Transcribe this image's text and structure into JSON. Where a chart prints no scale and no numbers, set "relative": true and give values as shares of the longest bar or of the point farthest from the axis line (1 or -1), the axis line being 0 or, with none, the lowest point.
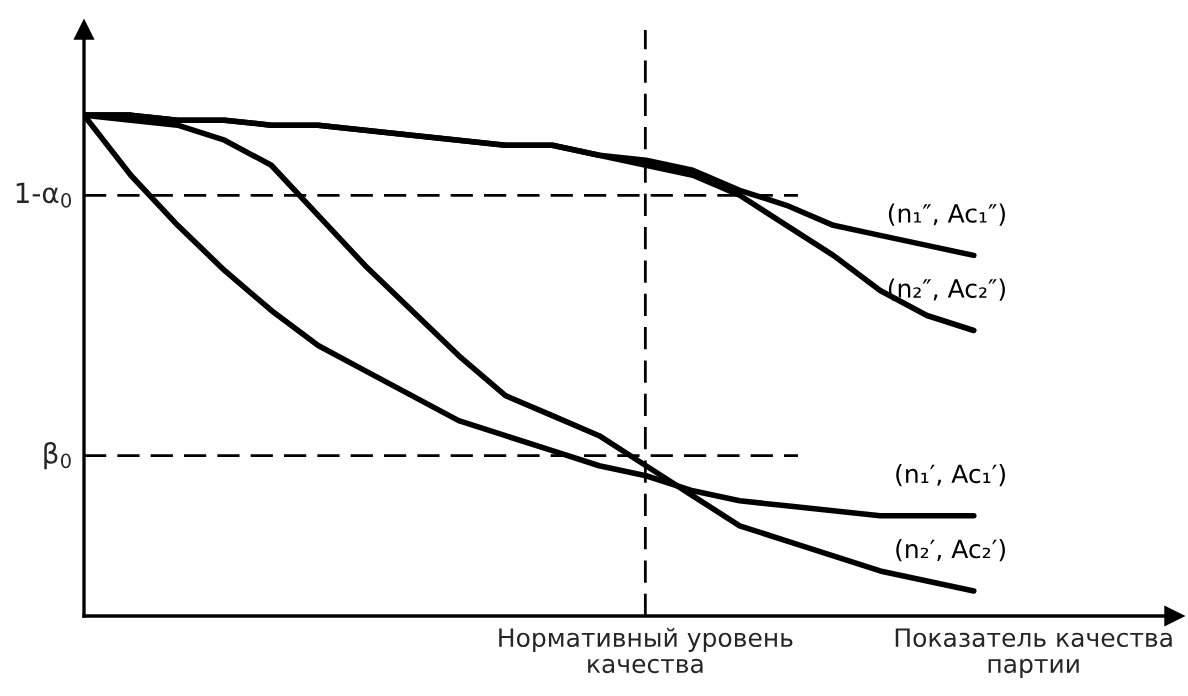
{
  "chart_data": {
    "type": "line",
    "relative": true,
    "xlabel": "Показатель качества\nпартии",
    "categories": [
      null,
      null,
      null,
      null,
      null,
      null,
      null,
      null,
      null,
      null,
      null,
      null,
      null,
      null,
      null,
      null,
      null,
      null,
      null,
      null
    ],
    "annotations": [
      "Нормативный уровень\nкачества"
    ],
    "series": [
      {
        "name": "(n₁″, Ac₁″)",
        "color": "#000000",
        "values": [
          1.0,
          1.0,
          0.99,
          0.99,
          0.98,
          0.98,
          0.97,
          0.96,
          0.95,
          0.94,
          0.94,
          0.92,
          0.91,
          0.89,
          0.85,
          0.82,
          0.78,
          0.76,
          0.74,
          0.72
        ]
      },
      {
        "name": "(n₂″, Ac₂″)",
        "color": "#000000",
        "values": [
          1.0,
          1.0,
          0.99,
          0.99,
          0.98,
          0.98,
          0.97,
          0.96,
          0.95,
          0.94,
          0.94,
          0.92,
          0.9,
          0.88,
          0.84,
          0.78,
          0.72,
          0.65,
          0.6,
          0.57
        ]
      },
      {
        "name": "(n₁′, Ac₁′)",
        "color": "#000000",
        "values": [
          1.0,
          0.88,
          0.78,
          0.69,
          0.61,
          0.54,
          0.49,
          0.44,
          0.39,
          0.36,
          0.33,
          0.3,
          0.28,
          0.25,
          0.23,
          0.22,
          0.21,
          0.2,
          0.2,
          0.2
        ]
      },
      {
        "name": "(n₂′, Ac₂′)",
        "color": "#000000",
        "values": [
          1.0,
          0.99,
          0.98,
          0.95,
          0.9,
          0.8,
          0.7,
          0.61,
          0.52,
          0.44,
          0.4,
          0.36,
          0.3,
          0.24,
          0.18,
          0.15,
          0.12,
          0.09,
          0.07,
          0.05
        ]
      }
    ],
    "ref_lines": [
      {
        "axis": "y",
        "value": 0.84,
        "label": "1-α$_{0}$",
        "color": "#000000",
        "line_style": "dashed"
      },
      {
        "axis": "y",
        "value": 0.32,
        "label": "β$_{0}$",
        "color": "#000000",
        "line_style": "dashed"
      }
    ],
    "legend": false,
    "marker": "none",
    "line_style": "solid"
  }
}
